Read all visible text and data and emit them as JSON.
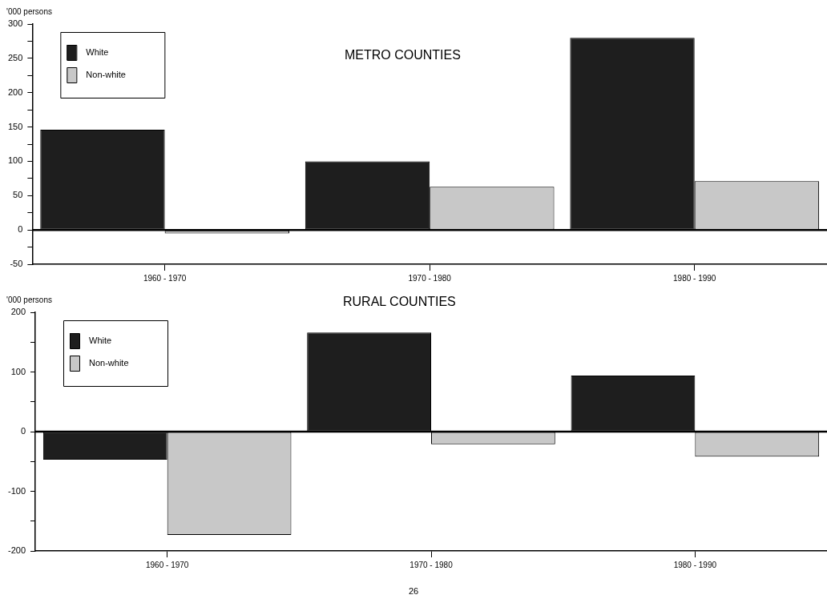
{
  "chart_data": [
    {
      "type": "bar",
      "title": "METRO COUNTIES",
      "ylabel": "'000 persons",
      "categories": [
        "1960 - 1970",
        "1970 - 1980",
        "1980 - 1990"
      ],
      "series": [
        {
          "name": "White",
          "color": "#1e1e1e",
          "values": [
            146,
            100,
            280
          ]
        },
        {
          "name": "Non-white",
          "color": "#c8c8c8",
          "values": [
            -5,
            63,
            71
          ]
        }
      ],
      "ylim": [
        -50,
        300
      ],
      "yticks": [
        -50,
        {
          "value": -25,
          "label": null
        },
        0,
        {
          "value": 25,
          "label": null
        },
        50,
        {
          "value": 75,
          "label": null
        },
        100,
        {
          "value": 125,
          "label": null
        },
        150,
        {
          "value": 175,
          "label": null
        },
        200,
        {
          "value": 225,
          "label": null
        },
        250,
        {
          "value": 275,
          "label": null
        },
        300
      ],
      "ref_lines": [
        {
          "axis": "y",
          "value": 0,
          "label": null
        }
      ],
      "grid": false,
      "legend": "top left"
    },
    {
      "type": "bar",
      "title": "RURAL COUNTIES",
      "ylabel": "'000 persons",
      "categories": [
        "1960 - 1970",
        "1970 - 1980",
        "1980 - 1990"
      ],
      "series": [
        {
          "name": "White",
          "color": "#1e1e1e",
          "values": [
            -47,
            166,
            94
          ]
        },
        {
          "name": "Non-white",
          "color": "#c8c8c8",
          "values": [
            -173,
            -21,
            -42
          ]
        }
      ],
      "ylim": [
        -200,
        200
      ],
      "yticks": [
        -200,
        {
          "value": -150,
          "label": null
        },
        -100,
        {
          "value": -50,
          "label": null
        },
        0,
        {
          "value": 50,
          "label": null
        },
        100,
        {
          "value": 150,
          "label": null
        },
        200
      ],
      "ref_lines": [
        {
          "axis": "y",
          "value": 0,
          "label": null
        }
      ],
      "grid": false,
      "legend": "top left",
      "annotations": [
        "26"
      ]
    }
  ]
}
